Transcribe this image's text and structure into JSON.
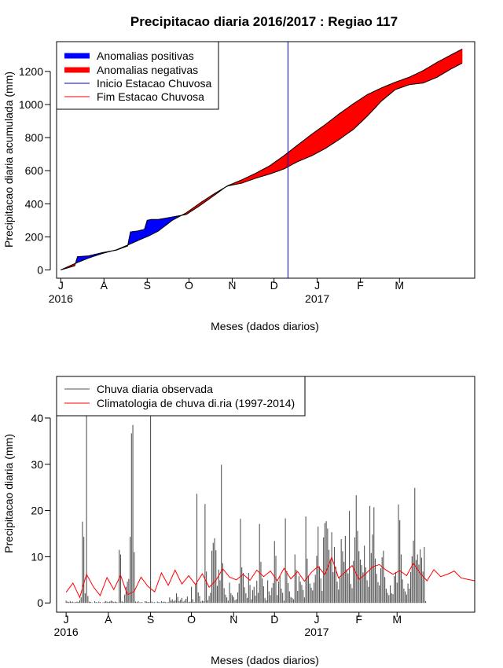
{
  "chart_data": [
    {
      "type": "area",
      "title": "Precipitacao diaria 2016/2017 : Regiao 117",
      "xlabel": "Meses (dados diarios)",
      "ylabel": "Precipitacao diaria acumulada (mm)",
      "ylim": [
        -50,
        1380
      ],
      "xlim": [
        -3,
        297
      ],
      "yticks": [
        0,
        200,
        400,
        600,
        800,
        1000,
        1200
      ],
      "month_labels": [
        "J",
        "A",
        "S",
        "O",
        "N",
        "D",
        "J",
        "F",
        "M"
      ],
      "month_positions": [
        0,
        31,
        62,
        92,
        123,
        153,
        184,
        215,
        243
      ],
      "year_labels": [
        {
          "text": "2016",
          "pos": 0
        },
        {
          "text": "2017",
          "pos": 184
        }
      ],
      "legend": [
        "Anomalias positivas",
        "Anomalias negativas",
        "Inicio Estacao Chuvosa",
        "Fim Estacao Chuvosa"
      ],
      "legend_colors": [
        "#0000ff",
        "#ff0000",
        "#0000cc",
        "#ff0000"
      ],
      "rainy_season_start_day": 163,
      "climatology_anchor_days": [
        0,
        10,
        20,
        30,
        40,
        48,
        56,
        63,
        70,
        80,
        90,
        100,
        110,
        120,
        130,
        140,
        150,
        160,
        170,
        180,
        190,
        200,
        210,
        220,
        230,
        240,
        250,
        260,
        270,
        280,
        288
      ],
      "climatology_cumulative_mm": [
        0,
        38,
        72,
        100,
        122,
        150,
        180,
        205,
        235,
        300,
        345,
        405,
        460,
        510,
        545,
        585,
        630,
        690,
        755,
        820,
        880,
        945,
        1005,
        1060,
        1100,
        1135,
        1165,
        1205,
        1255,
        1300,
        1335
      ],
      "observed_anchor_days": [
        0,
        10,
        12,
        20,
        30,
        40,
        48,
        50,
        55,
        60,
        62,
        65,
        70,
        80,
        90,
        100,
        110,
        118,
        120,
        130,
        140,
        150,
        160,
        170,
        180,
        190,
        200,
        210,
        220,
        230,
        240,
        250,
        260,
        270,
        280,
        288
      ],
      "observed_cumulative_mm": [
        0,
        25,
        80,
        85,
        105,
        120,
        145,
        230,
        235,
        245,
        300,
        305,
        305,
        320,
        335,
        390,
        450,
        500,
        508,
        525,
        555,
        580,
        610,
        655,
        690,
        735,
        790,
        850,
        930,
        1020,
        1090,
        1120,
        1130,
        1165,
        1215,
        1250
      ]
    },
    {
      "type": "bar",
      "xlabel": "Meses (dados diarios)",
      "ylabel": "Precipitacao diaria (mm)",
      "ylim": [
        -2,
        49
      ],
      "xlim": [
        -7,
        300
      ],
      "yticks": [
        0,
        10,
        20,
        30,
        40
      ],
      "month_labels": [
        "J",
        "A",
        "S",
        "O",
        "N",
        "D",
        "J",
        "F",
        "M"
      ],
      "month_positions": [
        0,
        31,
        62,
        92,
        123,
        153,
        184,
        215,
        243
      ],
      "year_labels": [
        {
          "text": "2016",
          "pos": 0
        },
        {
          "text": "2017",
          "pos": 184
        }
      ],
      "legend": [
        "Chuva diaria observada",
        "Climatologia de chuva di.ria (1997-2014)"
      ],
      "legend_colors": [
        "#555555",
        "#ff0000"
      ],
      "observed_days": [
        0,
        1,
        2,
        3,
        4,
        5,
        6,
        7,
        8,
        9,
        10,
        11,
        12,
        13,
        14,
        15,
        16,
        17,
        18,
        19,
        20,
        21,
        22,
        23,
        24,
        25,
        26,
        27,
        28,
        29,
        30,
        31,
        32,
        33,
        34,
        35,
        36,
        37,
        38,
        39,
        40,
        41,
        42,
        43,
        44,
        45,
        46,
        47,
        48,
        49,
        50,
        51,
        52,
        53,
        54,
        55,
        56,
        57,
        58,
        59,
        60,
        61,
        62,
        63,
        64,
        65,
        66,
        67,
        68,
        69,
        70,
        71,
        72,
        73,
        74,
        75,
        76,
        77,
        78,
        79,
        80,
        81,
        82,
        83,
        84,
        85,
        86,
        87,
        88,
        89,
        90,
        91,
        92,
        93,
        94,
        95,
        96,
        97,
        98,
        99,
        100,
        101,
        102,
        103,
        104,
        105,
        106,
        107,
        108,
        109,
        110,
        111,
        112,
        113,
        114,
        115,
        116,
        117,
        118,
        119,
        120,
        121,
        122,
        123,
        124,
        125,
        126,
        127,
        128,
        129,
        130,
        131,
        132,
        133,
        134,
        135,
        136,
        137,
        138,
        139,
        140,
        141,
        142,
        143,
        144,
        145,
        146,
        147,
        148,
        149,
        150,
        151,
        152,
        153,
        154,
        155,
        156,
        157,
        158,
        159,
        160,
        161,
        162,
        163,
        164,
        165,
        166,
        167,
        168,
        169,
        170,
        171,
        172,
        173,
        174,
        175,
        176,
        177,
        178,
        179,
        180,
        181,
        182,
        183,
        184,
        185,
        186,
        187,
        188,
        189,
        190,
        191,
        192,
        193,
        194,
        195,
        196,
        197,
        198,
        199,
        200,
        201,
        202,
        203,
        204,
        205,
        206,
        207,
        208,
        209,
        210,
        211,
        212,
        213,
        214,
        215,
        216,
        217,
        218,
        219,
        220,
        221,
        222,
        223,
        224,
        225,
        226,
        227,
        228,
        229,
        230,
        231,
        232,
        233,
        234,
        235,
        236,
        237,
        238,
        239,
        240,
        241,
        242,
        243,
        244,
        245,
        246,
        247,
        248,
        249,
        250,
        251,
        252,
        253,
        254,
        255,
        256,
        257,
        258,
        259,
        260,
        261,
        262,
        263,
        264,
        265,
        266,
        267,
        268,
        269,
        270,
        271,
        272,
        273,
        274,
        275,
        276,
        277,
        278,
        279,
        280,
        281,
        282,
        283,
        284,
        285,
        286,
        287,
        288,
        289,
        290,
        291,
        292
      ],
      "observed_mm": [
        0.5,
        0.3,
        0.2,
        0.4,
        0.2,
        0.3,
        0.1,
        0.2,
        0.3,
        0.2,
        0.6,
        1.2,
        17.6,
        14.3,
        2.1,
        49.0,
        1.5,
        0.3,
        0.2,
        0.1,
        0,
        0.4,
        0.2,
        0.1,
        0.3,
        0.2,
        0,
        0.1,
        0.2,
        0.4,
        0.3,
        0.2,
        0.3,
        0.5,
        0.4,
        0.2,
        0.3,
        0.2,
        0.1,
        11.5,
        10.5,
        0.4,
        0.2,
        1.8,
        3.5,
        4.6,
        5.2,
        14.3,
        36.7,
        38.5,
        11.0,
        0.3,
        0.2,
        0.4,
        0.1,
        0.2,
        0.1,
        0,
        0.4,
        0.3,
        0.2,
        0.2,
        49.0,
        0.3,
        0.1,
        0.2,
        0,
        0.3,
        0.2,
        0.1,
        0.4,
        0.2,
        0.3,
        0.2,
        0.1,
        0.2,
        1.2,
        0.5,
        0.8,
        0.4,
        0.6,
        2.1,
        1.3,
        0.4,
        0.7,
        1.1,
        0.3,
        0.5,
        0.9,
        1.4,
        0.2,
        0.3,
        3.5,
        0.8,
        0.2,
        4.1,
        23.6,
        2.3,
        1.5,
        0.3,
        0.5,
        0.4,
        21.4,
        6.8,
        0.6,
        1.5,
        2.2,
        11.3,
        13.0,
        14.0,
        11.4,
        3.7,
        7.2,
        4.9,
        29.9,
        8.6,
        3.2,
        1.8,
        1.2,
        0.5,
        4.4,
        2.1,
        1.7,
        1.3,
        0.6,
        0.8,
        2.3,
        4.2,
        18.2,
        7.7,
        6.5,
        3.4,
        2.1,
        1.1,
        6.5,
        3.9,
        0.8,
        2.8,
        3.5,
        1.6,
        4.8,
        2.2,
        17.1,
        8.9,
        5.3,
        3.6,
        1.1,
        0.6,
        4.9,
        2.5,
        1.7,
        3.3,
        4.3,
        13.4,
        10.2,
        1.7,
        4.6,
        5.8,
        3.1,
        2.2,
        0.5,
        18.3,
        6.9,
        4.3,
        2.5,
        1.3,
        1.1,
        0.8,
        10.5,
        7.2,
        2.6,
        5.8,
        4.6,
        3.9,
        2.8,
        1.2,
        18.7,
        9.6,
        5.9,
        4.2,
        3.3,
        2.7,
        4.4,
        6.1,
        10.2,
        16.5,
        7.9,
        5.3,
        2.6,
        14.2,
        17.3,
        17.7,
        16.1,
        11.5,
        9.4,
        15.3,
        6.7,
        12.1,
        7.8,
        4.6,
        2.9,
        5.5,
        13.8,
        11.2,
        8.9,
        14.5,
        7.3,
        6.4,
        19.9,
        4.1,
        3.2,
        9.1,
        14.2,
        23.3,
        15.6,
        11.2,
        9.4,
        8.2,
        6.6,
        12.4,
        7.7,
        4.9,
        3.5,
        21.0,
        10.8,
        14.8,
        20.7,
        9.6,
        6.3,
        4.5,
        3.8,
        7.5,
        9.9,
        11.3,
        5.6,
        3.1,
        2.2,
        1.7,
        3.8,
        2.1,
        1.9,
        5.8,
        6.7,
        4.4,
        21.3,
        17.9,
        10.5,
        5.1,
        3.1,
        2.5,
        1.8,
        4.2,
        3.1,
        6.7,
        10.1,
        13.5,
        24.9,
        9.3,
        10.5,
        8.3,
        11.6,
        9.8,
        6.8,
        12.1,
        0.4,
        0,
        0,
        0,
        0,
        0,
        0,
        0,
        0,
        0,
        0,
        0,
        0,
        0,
        0,
        0,
        0,
        0,
        0,
        0,
        0,
        0,
        0,
        0,
        0,
        0,
        0,
        0,
        0
      ],
      "climatology_anchor_days": [
        0,
        5,
        10,
        15,
        20,
        25,
        30,
        35,
        40,
        45,
        50,
        55,
        60,
        65,
        70,
        75,
        80,
        85,
        90,
        95,
        100,
        105,
        110,
        115,
        120,
        125,
        130,
        135,
        140,
        145,
        150,
        155,
        160,
        165,
        170,
        175,
        180,
        185,
        190,
        195,
        200,
        205,
        210,
        215,
        220,
        225,
        230,
        235,
        240,
        245,
        250,
        255,
        260,
        265,
        270,
        275,
        280,
        285,
        290,
        295,
        300
      ],
      "climatology_mm": [
        2.3,
        4.3,
        1.2,
        6.2,
        3.5,
        1.6,
        5.5,
        2.9,
        6.0,
        1.8,
        2.5,
        5.6,
        3.6,
        2.4,
        6.5,
        3.8,
        7.1,
        4.1,
        5.9,
        4.0,
        6.3,
        3.4,
        4.9,
        7.4,
        5.6,
        5.0,
        6.2,
        4.9,
        7.1,
        5.7,
        6.9,
        4.8,
        7.5,
        5.2,
        6.8,
        4.7,
        6.6,
        7.9,
        6.1,
        9.9,
        5.4,
        6.7,
        8.1,
        5.1,
        6.3,
        7.8,
        8.3,
        7.1,
        6.2,
        7.0,
        5.9,
        8.6,
        6.4,
        4.8,
        7.2,
        5.7,
        6.2,
        6.9,
        5.4,
        5.1,
        4.8
      ]
    }
  ]
}
